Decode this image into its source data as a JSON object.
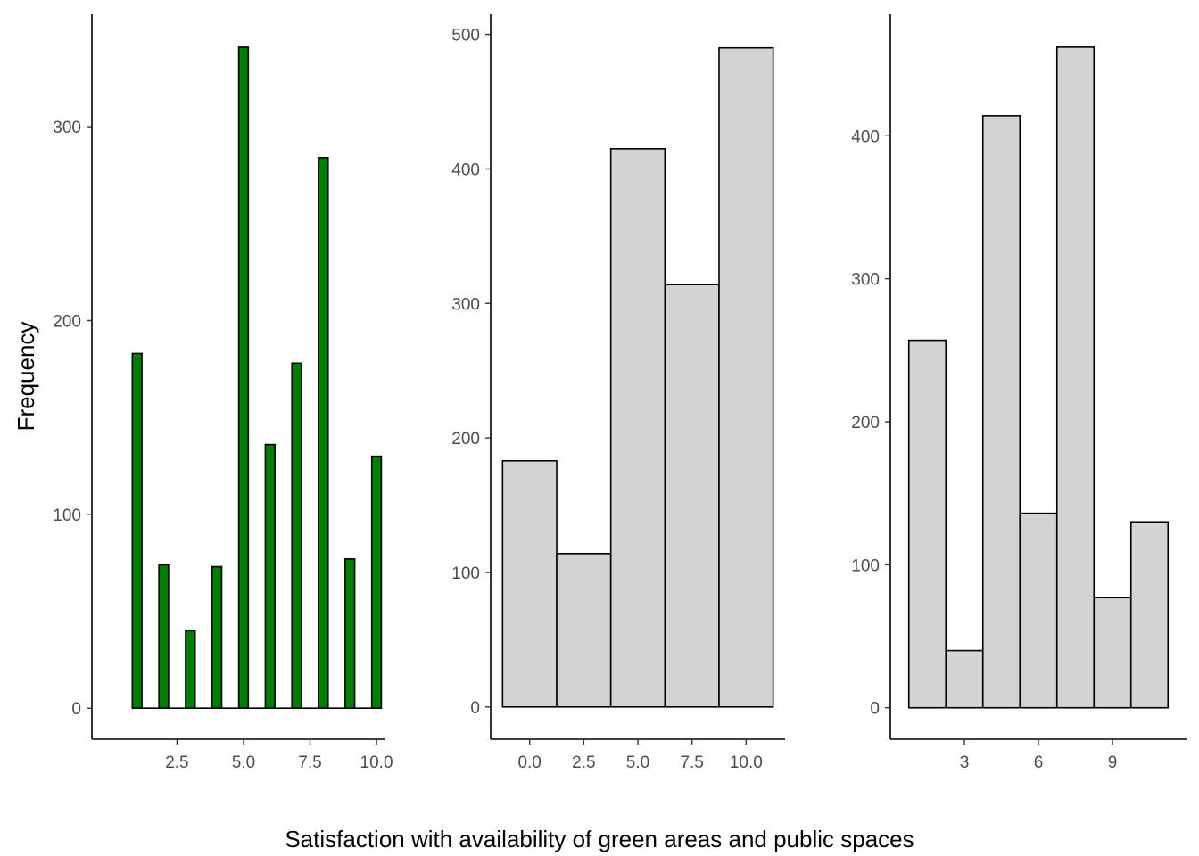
{
  "figure": {
    "ylabel": "Frequency",
    "xlabel": "Satisfaction with availability of green areas and public spaces"
  },
  "chart_data": [
    {
      "type": "bar",
      "fill": "#008000",
      "stroke": "#000000",
      "x": [
        1,
        2,
        3,
        4,
        5,
        6,
        7,
        8,
        9,
        10
      ],
      "values": [
        183,
        74,
        40,
        73,
        341,
        136,
        178,
        284,
        77,
        130
      ],
      "xlim": [
        -0.7,
        10.3
      ],
      "ylim": [
        -16,
        358
      ],
      "xticks": [
        2.5,
        5.0,
        7.5,
        10.0
      ],
      "xtick_labels": [
        "2.5",
        "5.0",
        "7.5",
        "10.0"
      ],
      "yticks": [
        0,
        100,
        200,
        300
      ],
      "ytick_labels": [
        "0",
        "100",
        "200",
        "300"
      ],
      "grid": false
    },
    {
      "type": "bar",
      "fill": "#d3d3d3",
      "stroke": "#000000",
      "bins": [
        [
          -1.25,
          1.25
        ],
        [
          1.25,
          3.75
        ],
        [
          3.75,
          6.25
        ],
        [
          6.25,
          8.75
        ],
        [
          8.75,
          11.25
        ]
      ],
      "values": [
        183,
        114,
        415,
        314,
        490
      ],
      "xlim": [
        -1.8,
        11.8
      ],
      "ylim": [
        -24,
        515
      ],
      "xticks": [
        0.0,
        2.5,
        5.0,
        7.5,
        10.0
      ],
      "xtick_labels": [
        "0.0",
        "2.5",
        "5.0",
        "7.5",
        "10.0"
      ],
      "yticks": [
        0,
        100,
        200,
        300,
        400,
        500
      ],
      "ytick_labels": [
        "0",
        "100",
        "200",
        "300",
        "400",
        "500"
      ],
      "grid": false
    },
    {
      "type": "bar",
      "fill": "#d3d3d3",
      "stroke": "#000000",
      "bins": [
        [
          1,
          2
        ],
        [
          2,
          3
        ],
        [
          3,
          4
        ],
        [
          4,
          5
        ],
        [
          5,
          6
        ],
        [
          6,
          7
        ],
        [
          7,
          8
        ]
      ],
      "values": [
        257,
        40,
        414,
        136,
        462,
        77,
        130
      ],
      "xlim": [
        0.5,
        8.5
      ],
      "ylim": [
        -22,
        485
      ],
      "xticks": [
        2.5,
        4.5,
        6.5
      ],
      "xtick_labels": [
        "3",
        "6",
        "9"
      ],
      "yticks": [
        0,
        100,
        200,
        300,
        400
      ],
      "ytick_labels": [
        "0",
        "100",
        "200",
        "300",
        "400"
      ],
      "grid": false
    }
  ]
}
